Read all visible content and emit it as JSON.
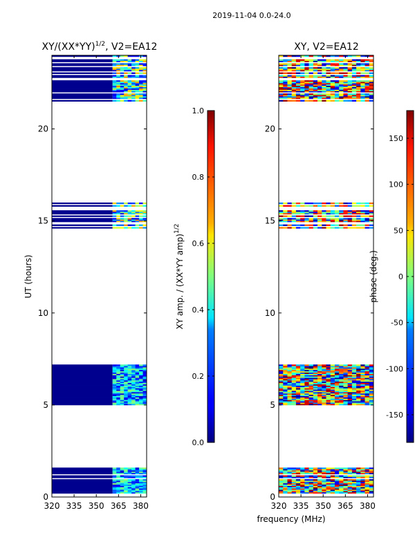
{
  "suptitle": "2019-11-04 0.0-24.0",
  "xlabel": "frequency (MHz)",
  "chart_data": [
    {
      "type": "heatmap",
      "title_base": "XY/(XX*YY)",
      "title_sup": "1/2",
      "title_suffix": ", V2=EA12",
      "ylabel": "UT (hours)",
      "xlim": [
        320,
        384
      ],
      "ylim": [
        0,
        24
      ],
      "xticks": [
        "320",
        "335",
        "350",
        "365",
        "380"
      ],
      "yticks": [
        "0",
        "5",
        "10",
        "15",
        "20"
      ],
      "bands": [
        {
          "from": 0.2,
          "to": 1.6,
          "note": "flagged 320-361 MHz, data 361-384"
        },
        {
          "from": 5.0,
          "to": 7.2,
          "note": "flagged 320-361 MHz, data 361-384"
        },
        {
          "from": 14.6,
          "to": 16.0,
          "note": "flagged stripes with gaps"
        },
        {
          "from": 21.5,
          "to": 24.0,
          "note": "flagged stripes with gaps"
        }
      ],
      "colorbar": {
        "label_base": "XY amp. / (XX*YY amp)",
        "label_sup": "1/2",
        "range": [
          0.0,
          1.0
        ],
        "ticks": [
          "0.0",
          "0.2",
          "0.4",
          "0.6",
          "0.8",
          "1.0"
        ],
        "colormap": "jet"
      }
    },
    {
      "type": "heatmap",
      "title": "XY, V2=EA12",
      "xlim": [
        320,
        384
      ],
      "ylim": [
        0,
        24
      ],
      "xticks": [
        "320",
        "335",
        "350",
        "365",
        "380"
      ],
      "yticks": [
        "0",
        "5",
        "10",
        "15",
        "20"
      ],
      "bands": [
        {
          "from": 0.2,
          "to": 1.6
        },
        {
          "from": 5.0,
          "to": 7.2
        },
        {
          "from": 14.6,
          "to": 16.0
        },
        {
          "from": 21.5,
          "to": 24.0
        }
      ],
      "colorbar": {
        "label": "phase (deg.)",
        "range": [
          -180,
          180
        ],
        "ticks": [
          "-150",
          "-100",
          "-50",
          "0",
          "50",
          "100",
          "150"
        ],
        "colormap": "jet"
      }
    }
  ]
}
